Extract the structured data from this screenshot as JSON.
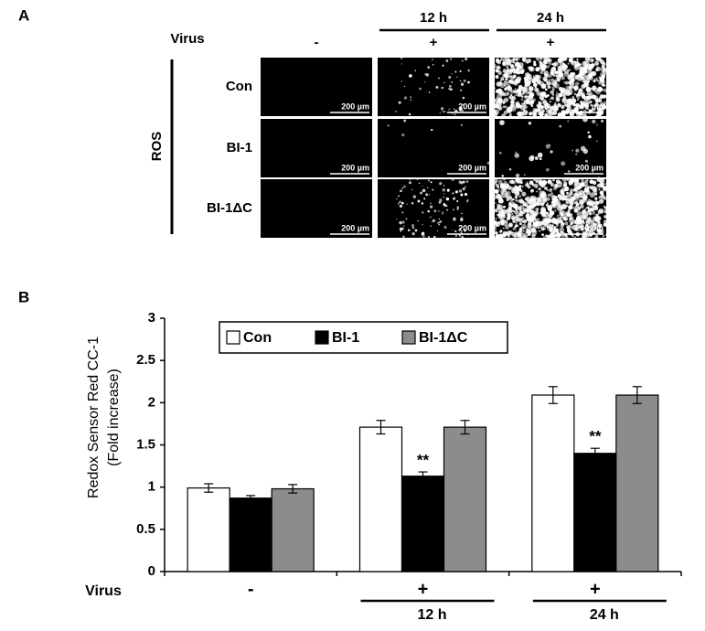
{
  "panel_a": {
    "label": "A",
    "virus_label": "Virus",
    "row_title": "ROS",
    "columns": [
      {
        "sign": "-"
      },
      {
        "sign": "+",
        "time": "12 h"
      },
      {
        "sign": "+",
        "time": "24 h"
      }
    ],
    "rows": [
      "Con",
      "BI-1",
      "BI-1ΔC"
    ],
    "scale_bar": "200 µm"
  },
  "chart_data": {
    "type": "bar",
    "panel_label": "B",
    "ylabel": [
      "Redox Sensor Red CC-1",
      "(Fold increase)"
    ],
    "x_row_label": "Virus",
    "categories": [
      "-",
      "+",
      "+"
    ],
    "category_sublabels": [
      null,
      "12 h",
      "24 h"
    ],
    "series": [
      {
        "name": "Con",
        "color": "#ffffff",
        "values": [
          0.99,
          1.71,
          2.09
        ],
        "errors": [
          0.05,
          0.08,
          0.1
        ]
      },
      {
        "name": "BI-1",
        "color": "#000000",
        "values": [
          0.87,
          1.13,
          1.4
        ],
        "errors": [
          0.03,
          0.05,
          0.06
        ],
        "labels": [
          null,
          "**",
          "**"
        ]
      },
      {
        "name": "BI-1ΔC",
        "color": "#8c8c8c",
        "values": [
          0.98,
          1.71,
          2.09
        ],
        "errors": [
          0.05,
          0.08,
          0.1
        ]
      }
    ],
    "ylim": [
      0,
      3
    ],
    "yticks": [
      0,
      0.5,
      1,
      1.5,
      2,
      2.5,
      3
    ],
    "legend_position": "top"
  }
}
